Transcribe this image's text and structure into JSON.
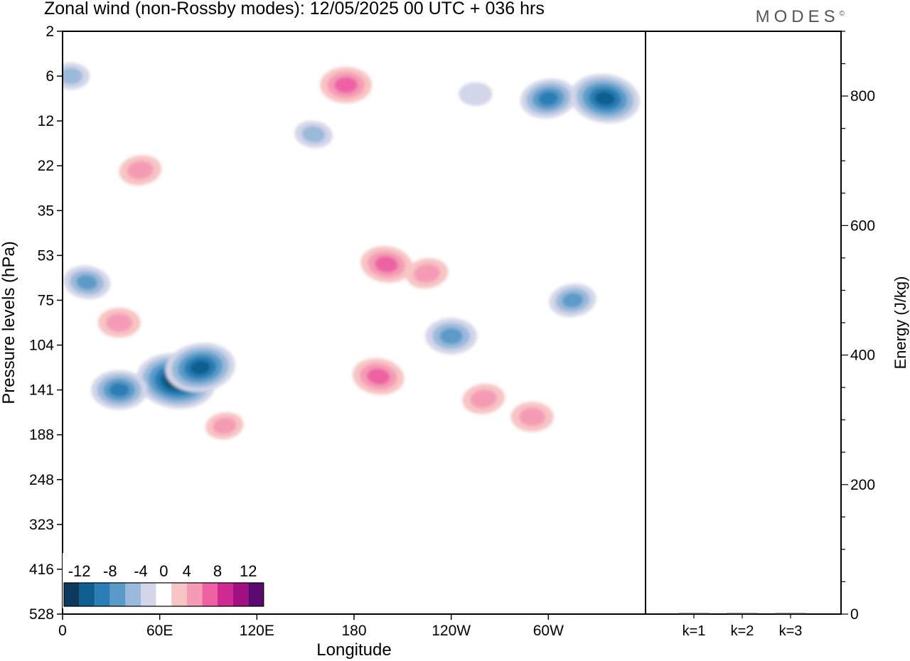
{
  "header": {
    "title": "Zonal wind (non-Rossby modes):  12/05/2025  00 UTC  + 036 hrs",
    "brand": "MODES",
    "brand_mark": "©"
  },
  "chart_data": [
    {
      "type": "heatmap",
      "xlabel": "Longitude",
      "ylabel": "Pressure levels (hPa)",
      "x_ticks": [
        "0",
        "60E",
        "120E",
        "180",
        "120W",
        "60W"
      ],
      "x_tick_degrees": [
        0,
        60,
        120,
        180,
        240,
        300
      ],
      "xlim": [
        0,
        360
      ],
      "y_ticks": [
        "2",
        "6",
        "12",
        "22",
        "35",
        "53",
        "75",
        "104",
        "141",
        "188",
        "248",
        "323",
        "416",
        "528"
      ],
      "y_reversed": true,
      "colorbar": {
        "labels": [
          "-12",
          "-8",
          "-4",
          "0",
          "4",
          "8",
          "12"
        ],
        "label_values": [
          -12,
          -8,
          -4,
          0,
          4,
          8,
          12
        ],
        "levels": [
          -14,
          -12,
          -10,
          -8,
          -6,
          -4,
          -2,
          2,
          4,
          6,
          8,
          10,
          12,
          14
        ],
        "colors": [
          "#0d3a5c",
          "#0f5f8f",
          "#2a7db5",
          "#5b9bc9",
          "#9bb9da",
          "#d2d6e8",
          "#ffffff",
          "#f8c4c4",
          "#f59bb5",
          "#ee62a4",
          "#cf2a92",
          "#a20f80",
          "#5a0a6e"
        ]
      },
      "features": [
        {
          "lon": 48,
          "level": 3.1,
          "value": 5
        },
        {
          "lon": 175,
          "level": 1.2,
          "value": 7
        },
        {
          "lon": 335,
          "level": 1.5,
          "value": -11
        },
        {
          "lon": 300,
          "level": 1.5,
          "value": -8
        },
        {
          "lon": 5,
          "level": 1.0,
          "value": -4
        },
        {
          "lon": 70,
          "level": 7.8,
          "value": -13
        },
        {
          "lon": 85,
          "level": 7.5,
          "value": -11
        },
        {
          "lon": 35,
          "level": 8.0,
          "value": -8
        },
        {
          "lon": 195,
          "level": 7.7,
          "value": 7
        },
        {
          "lon": 260,
          "level": 8.2,
          "value": 5
        },
        {
          "lon": 290,
          "level": 8.6,
          "value": 5
        },
        {
          "lon": 200,
          "level": 5.2,
          "value": 7
        },
        {
          "lon": 225,
          "level": 5.4,
          "value": 5
        },
        {
          "lon": 35,
          "level": 6.5,
          "value": 5
        },
        {
          "lon": 15,
          "level": 5.6,
          "value": -6
        },
        {
          "lon": 315,
          "level": 6.0,
          "value": -6
        },
        {
          "lon": 240,
          "level": 6.8,
          "value": -7
        },
        {
          "lon": 155,
          "level": 2.3,
          "value": -4
        },
        {
          "lon": 100,
          "level": 8.8,
          "value": 4
        },
        {
          "lon": 255,
          "level": 1.4,
          "value": -3
        }
      ]
    },
    {
      "type": "bar",
      "categories": [
        "k=1",
        "k=2",
        "k=3"
      ],
      "values": [
        1.5,
        1.2,
        0.8
      ],
      "ylabel": "Energy (J/kg)",
      "y_ticks": [
        "0",
        "200",
        "400",
        "600",
        "800"
      ],
      "ylim": [
        0,
        900
      ]
    }
  ]
}
